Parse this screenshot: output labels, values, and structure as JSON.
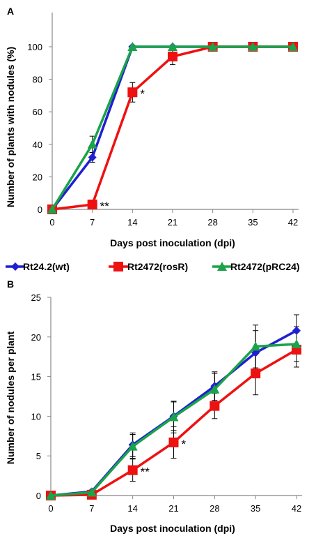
{
  "colors": {
    "series": [
      "#1f1fd1",
      "#ee1111",
      "#1aa34a"
    ],
    "axis": "#888888",
    "errorbar": "#000000"
  },
  "legend": {
    "position": "between-panels",
    "items": [
      {
        "label": "Rt24.2(wt)",
        "marker": "diamond",
        "color": "#1f1fd1"
      },
      {
        "label": "Rt2472(rosR)",
        "marker": "square",
        "color": "#ee1111"
      },
      {
        "label": "Rt2472(pRC24)",
        "marker": "triangle",
        "color": "#1aa34a"
      }
    ]
  },
  "chart_data": [
    {
      "type": "line",
      "panel": "A",
      "xlabel": "Days post inoculation (dpi)",
      "ylabel": "Number of plants with nodules (%)",
      "x": [
        0,
        7,
        14,
        21,
        28,
        35,
        42
      ],
      "xticks": [
        "0",
        "7",
        "14",
        "21",
        "28",
        "35",
        "42"
      ],
      "yticks": [
        "0",
        "20",
        "40",
        "60",
        "80",
        "100"
      ],
      "ylim": [
        0,
        100
      ],
      "grid": false,
      "series": [
        {
          "name": "Rt24.2(wt)",
          "marker": "diamond",
          "color": "#1f1fd1",
          "values": [
            0,
            32,
            100,
            100,
            100,
            100,
            100
          ],
          "err": [
            0,
            3,
            0,
            0,
            0,
            0,
            0
          ]
        },
        {
          "name": "Rt2472(rosR)",
          "marker": "square",
          "color": "#ee1111",
          "values": [
            0,
            3,
            72,
            94,
            100,
            100,
            100
          ],
          "err": [
            0,
            0,
            6,
            5,
            0,
            0,
            0
          ]
        },
        {
          "name": "Rt2472(pRC24)",
          "marker": "triangle",
          "color": "#1aa34a",
          "values": [
            0,
            40,
            100,
            100,
            100,
            100,
            100
          ],
          "err": [
            0,
            5,
            0,
            0,
            0,
            0,
            0
          ]
        }
      ],
      "annotations": [
        {
          "text": "**",
          "x": 7,
          "y": 3
        },
        {
          "text": "*",
          "x": 14,
          "y": 72
        }
      ]
    },
    {
      "type": "line",
      "panel": "B",
      "xlabel": "Days post inoculation (dpi)",
      "ylabel": "Number of nodules per plant",
      "x": [
        0,
        7,
        14,
        21,
        28,
        35,
        42
      ],
      "xticks": [
        "0",
        "7",
        "14",
        "21",
        "28",
        "35",
        "42"
      ],
      "yticks": [
        "0",
        "5",
        "10",
        "15",
        "20",
        "25"
      ],
      "ylim": [
        0,
        25
      ],
      "grid": false,
      "series": [
        {
          "name": "Rt24.2(wt)",
          "marker": "diamond",
          "color": "#1f1fd1",
          "values": [
            0,
            0.5,
            6.4,
            10.0,
            13.8,
            18.0,
            20.8
          ],
          "err": [
            0,
            0.2,
            1.5,
            1.8,
            1.8,
            2.8,
            2.0
          ]
        },
        {
          "name": "Rt2472(rosR)",
          "marker": "square",
          "color": "#ee1111",
          "values": [
            0,
            0.1,
            3.2,
            6.7,
            11.3,
            15.4,
            18.4
          ],
          "err": [
            0,
            0.1,
            1.4,
            2.0,
            1.6,
            2.7,
            2.2
          ]
        },
        {
          "name": "Rt2472(pRC24)",
          "marker": "triangle",
          "color": "#1aa34a",
          "values": [
            0,
            0.4,
            6.2,
            9.9,
            13.4,
            18.8,
            19.1
          ],
          "err": [
            0,
            0.2,
            1.5,
            2.0,
            2.0,
            2.7,
            2.2
          ]
        }
      ],
      "annotations": [
        {
          "text": "**",
          "x": 14,
          "y": 3.2
        },
        {
          "text": "*",
          "x": 21,
          "y": 6.7
        }
      ]
    }
  ]
}
